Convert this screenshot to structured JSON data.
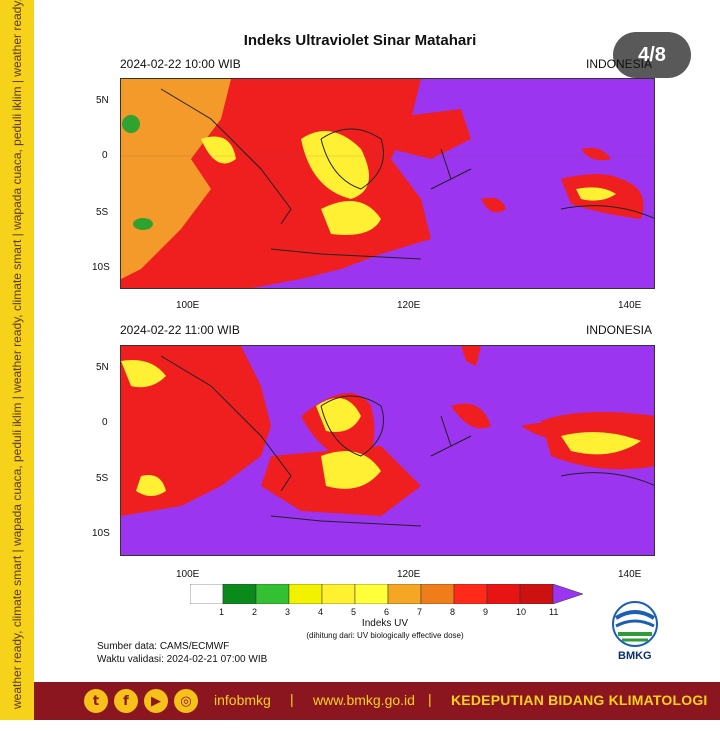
{
  "title": "Indeks Ultraviolet Sinar Matahari",
  "page_indicator": "4/8",
  "side_tagline": "weather ready, climate smart  |  wapada cuaca, peduli iklim  |  weather ready, climate smart  |  wapada cuaca, peduli iklim  |  weather ready, climate smart",
  "panels": [
    {
      "datetime": "2024-02-22  10:00 WIB",
      "region": "INDONESIA"
    },
    {
      "datetime": "2024-02-22  11:00 WIB",
      "region": "INDONESIA"
    }
  ],
  "lat_labels": [
    "5N",
    "0",
    "5S",
    "10S"
  ],
  "lon_labels": [
    "100E",
    "120E",
    "140E"
  ],
  "legend": {
    "title": "Indeks UV",
    "note": "(dihitung dari: UV biologically effective dose)",
    "ticks": [
      "1",
      "2",
      "3",
      "4",
      "5",
      "6",
      "7",
      "8",
      "9",
      "10",
      "11"
    ],
    "colors": [
      "#ffffff",
      "#0a8a1a",
      "#33c033",
      "#f2f200",
      "#fff030",
      "#ffff3a",
      "#f5a623",
      "#ef7d1a",
      "#ff2a1a",
      "#e81414",
      "#cc1111",
      "#9b35ef"
    ]
  },
  "source_line": "Sumber data: CAMS/ECMWF",
  "validity_line": "Waktu validasi: 2024-02-21 07:00 WIB",
  "logo_text": "BMKG",
  "footer": {
    "handle": "infobmkg",
    "separator": "|",
    "website": "www.bmkg.go.id",
    "department": "KEDEPUTIAN BIDANG KLIMATOLOGI"
  },
  "colors": {
    "purple": "#9b35ef",
    "red": "#ef1f1f",
    "orange": "#f39a2a",
    "yellow": "#fff033",
    "strip": "#f6d21a",
    "footer_bg": "#8c1620"
  }
}
